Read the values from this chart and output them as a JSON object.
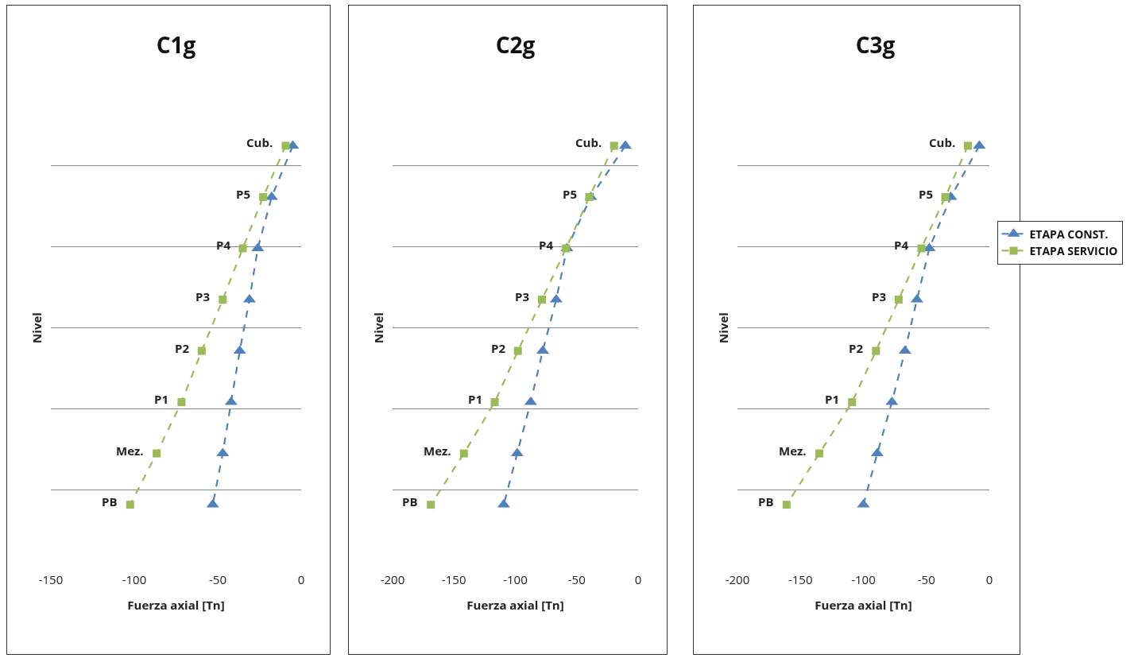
{
  "chart_data": [
    {
      "type": "line",
      "orientation": "horizontal",
      "title": "C1g",
      "xlabel": "Fuerza axial [Tn]",
      "ylabel": "Nivel",
      "categories": [
        "Cub.",
        "P5",
        "P4",
        "P3",
        "P2",
        "P1",
        "Mez.",
        "PB"
      ],
      "xlim": [
        -150,
        0
      ],
      "xticks": [
        -150,
        -100,
        -50,
        0
      ],
      "grid": "y",
      "legend": false,
      "line_style": "dashed",
      "series": [
        {
          "color": "#4f81bd",
          "marker": "triangle",
          "values": [
            -5,
            -17.7,
            -26,
            -31,
            -36.8,
            -42,
            -47,
            -53
          ]
        },
        {
          "color": "#9bbb59",
          "marker": "square",
          "values": [
            -9.3,
            -22.8,
            -35,
            -47,
            -59.6,
            -71.7,
            -86.6,
            -102.5
          ]
        }
      ]
    },
    {
      "type": "line",
      "orientation": "horizontal",
      "title": "C2g",
      "xlabel": "Fuerza axial [Tn]",
      "ylabel": "Nivel",
      "categories": [
        "Cub.",
        "P5",
        "P4",
        "P3",
        "P2",
        "P1",
        "Mez.",
        "PB"
      ],
      "xlim": [
        -200,
        0
      ],
      "xticks": [
        -200,
        -150,
        -100,
        -50,
        0
      ],
      "grid": "y",
      "legend": false,
      "line_style": "dashed",
      "series": [
        {
          "color": "#4f81bd",
          "marker": "triangle",
          "values": [
            -10.4,
            -38.5,
            -58,
            -66.7,
            -77.7,
            -87.5,
            -98.5,
            -109.5
          ]
        },
        {
          "color": "#9bbb59",
          "marker": "square",
          "values": [
            -19.6,
            -39.8,
            -58.7,
            -78.3,
            -97.9,
            -116.8,
            -141.9,
            -168.8
          ]
        }
      ]
    },
    {
      "type": "line",
      "orientation": "horizontal",
      "title": "C3g",
      "xlabel": "Fuerza axial [Tn]",
      "ylabel": "Nivel",
      "categories": [
        "Cub.",
        "P5",
        "P4",
        "P3",
        "P2",
        "P1",
        "Mez.",
        "PB"
      ],
      "xlim": [
        -200,
        0
      ],
      "xticks": [
        -200,
        -150,
        -100,
        -50,
        0
      ],
      "grid": "y",
      "legend": "right",
      "line_style": "dashed",
      "series": [
        {
          "name": "ETAPA CONST.",
          "color": "#4f81bd",
          "marker": "triangle",
          "values": [
            -8,
            -30.6,
            -47.7,
            -57.5,
            -67,
            -77.4,
            -89,
            -100
          ]
        },
        {
          "name": "ETAPA SERVICIO",
          "color": "#9bbb59",
          "marker": "square",
          "values": [
            -17,
            -35,
            -54,
            -72,
            -90,
            -109,
            -135,
            -161
          ]
        }
      ]
    }
  ]
}
